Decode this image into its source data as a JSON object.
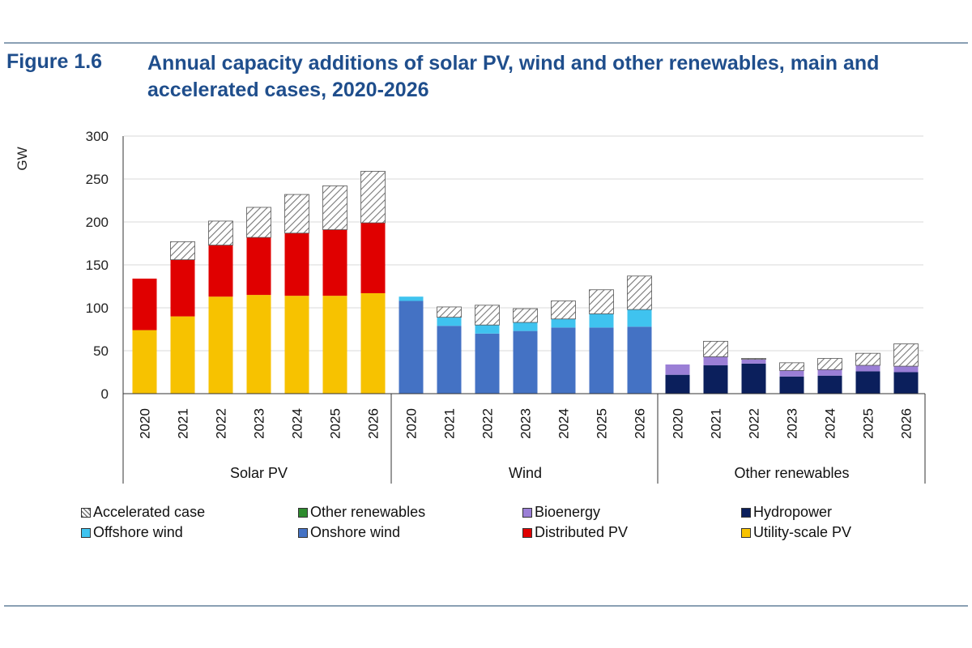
{
  "figure": {
    "label": "Figure 1.6",
    "title": "Annual capacity additions of solar PV, wind and other renewables, main and accelerated cases, 2020-2026"
  },
  "colors": {
    "title": "#1f4e8c",
    "utility_pv": "#f7c200",
    "distributed_pv": "#e00000",
    "onshore_wind": "#4472c4",
    "offshore_wind": "#3fc3ef",
    "hydropower": "#0b1f5c",
    "bioenergy": "#9b7fd6",
    "other_renewables": "#2e8b2e",
    "accelerated": "hatch"
  },
  "chart_data": {
    "type": "bar",
    "stacked": true,
    "ylabel": "GW",
    "ylim": [
      0,
      300
    ],
    "yticks": [
      0,
      50,
      100,
      150,
      200,
      250,
      300
    ],
    "grid": true,
    "groups": [
      {
        "name": "Solar PV",
        "categories": [
          "2020",
          "2021",
          "2022",
          "2023",
          "2024",
          "2025",
          "2026"
        ],
        "series": [
          {
            "name": "Utility-scale PV",
            "values": [
              74,
              90,
              113,
              115,
              114,
              114,
              117
            ]
          },
          {
            "name": "Distributed PV",
            "values": [
              60,
              66,
              60,
              67,
              73,
              77,
              82
            ]
          },
          {
            "name": "Accelerated case",
            "values": [
              0,
              21,
              28,
              35,
              45,
              51,
              60
            ]
          }
        ]
      },
      {
        "name": "Wind",
        "categories": [
          "2020",
          "2021",
          "2022",
          "2023",
          "2024",
          "2025",
          "2026"
        ],
        "series": [
          {
            "name": "Onshore wind",
            "values": [
              108,
              79,
              70,
              73,
              77,
              77,
              78
            ]
          },
          {
            "name": "Offshore wind",
            "values": [
              5,
              10,
              10,
              10,
              10,
              16,
              20
            ]
          },
          {
            "name": "Accelerated case",
            "values": [
              0,
              12,
              23,
              16,
              21,
              28,
              39
            ]
          }
        ]
      },
      {
        "name": "Other renewables",
        "categories": [
          "2020",
          "2021",
          "2022",
          "2023",
          "2024",
          "2025",
          "2026"
        ],
        "series": [
          {
            "name": "Hydropower",
            "values": [
              22,
              33,
              35,
              20,
              21,
              26,
              25
            ]
          },
          {
            "name": "Bioenergy",
            "values": [
              12,
              10,
              5,
              7,
              7,
              7,
              7
            ]
          },
          {
            "name": "Other renewables",
            "values": [
              0,
              0,
              0,
              0,
              0,
              0,
              0
            ]
          },
          {
            "name": "Accelerated case",
            "values": [
              0,
              18,
              1,
              9,
              13,
              14,
              26
            ]
          }
        ]
      }
    ],
    "legend": [
      {
        "name": "Accelerated case",
        "color_key": "accelerated"
      },
      {
        "name": "Other renewables",
        "color_key": "other_renewables"
      },
      {
        "name": "Bioenergy",
        "color_key": "bioenergy"
      },
      {
        "name": "Hydropower",
        "color_key": "hydropower"
      },
      {
        "name": "Offshore wind",
        "color_key": "offshore_wind"
      },
      {
        "name": "Onshore wind",
        "color_key": "onshore_wind"
      },
      {
        "name": "Distributed PV",
        "color_key": "distributed_pv"
      },
      {
        "name": "Utility-scale PV",
        "color_key": "utility_pv"
      }
    ]
  }
}
